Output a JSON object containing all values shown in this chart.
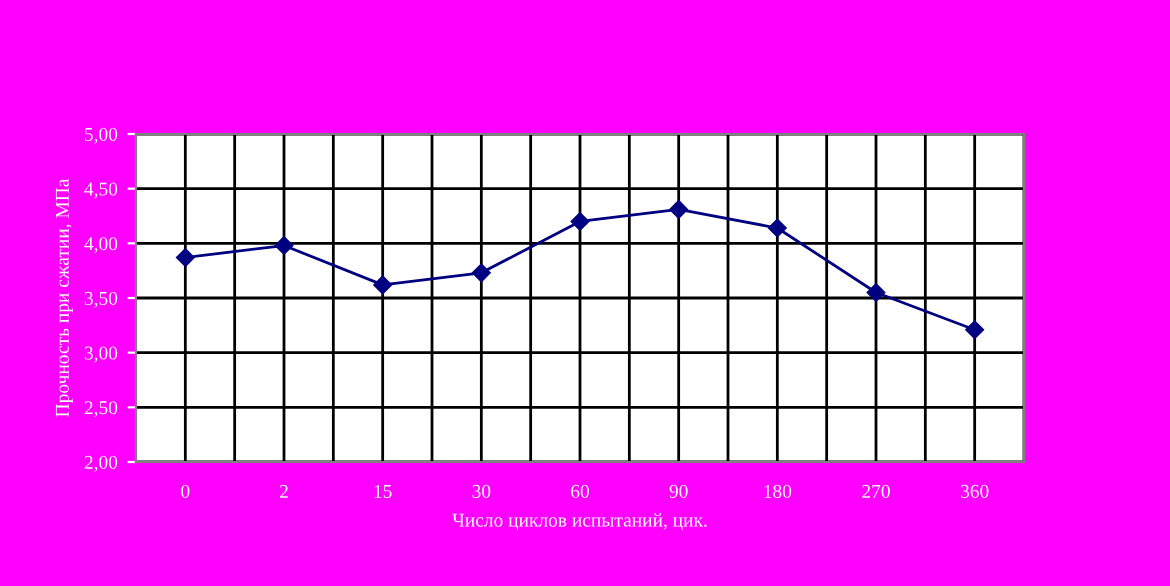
{
  "chart_data": {
    "type": "line",
    "xlabel": "Число циклов испытаний, цик.",
    "ylabel": "Прочность при сжатии, МПа",
    "categories": [
      "0",
      "2",
      "15",
      "30",
      "60",
      "90",
      "180",
      "270",
      "360"
    ],
    "series": [
      {
        "color": "#000080",
        "values": [
          3.87,
          3.98,
          3.62,
          3.73,
          4.2,
          4.31,
          4.14,
          3.55,
          3.21
        ]
      }
    ],
    "ylim": [
      2,
      5
    ],
    "yticks": [
      {
        "value": 2,
        "label": "2,00"
      },
      {
        "value": 2.5,
        "label": "2,50"
      },
      {
        "value": 3,
        "label": "3,00"
      },
      {
        "value": 3.5,
        "label": "3,50"
      },
      {
        "value": 4,
        "label": "4,00"
      },
      {
        "value": 4.5,
        "label": "4,50"
      },
      {
        "value": 5,
        "label": "5,00"
      }
    ],
    "grid": true,
    "marker": "diamond",
    "line_style": "solid"
  }
}
